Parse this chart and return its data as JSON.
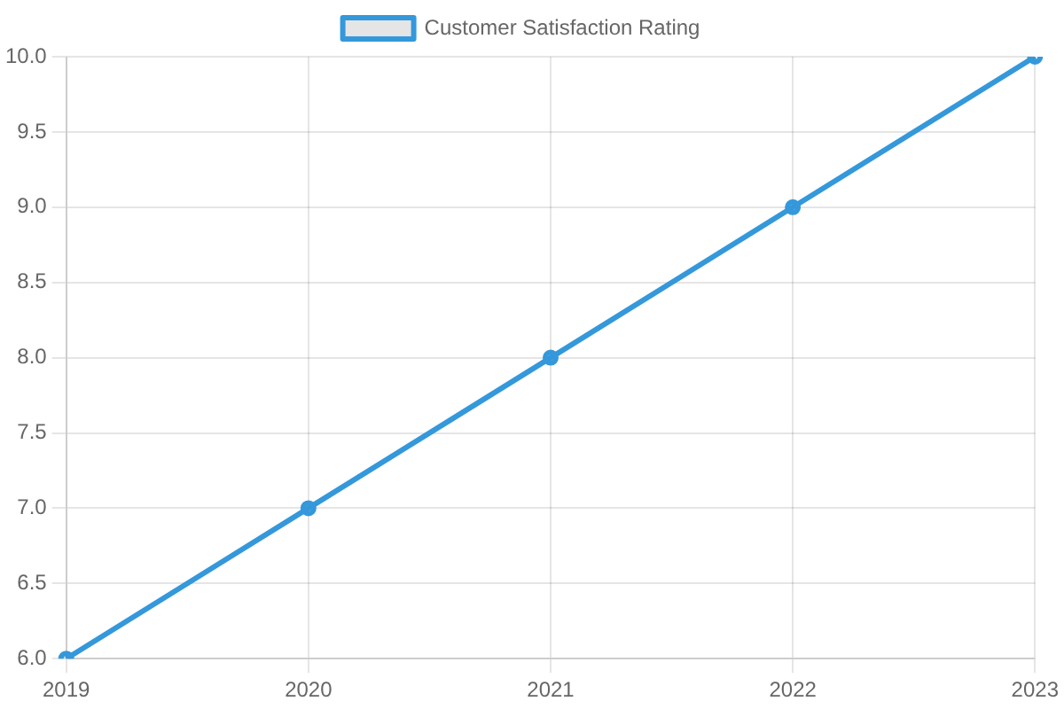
{
  "chart_data": {
    "type": "line",
    "categories": [
      "2019",
      "2020",
      "2021",
      "2022",
      "2023"
    ],
    "series": [
      {
        "name": "Customer Satisfaction Rating",
        "color": "#3498db",
        "values": [
          6,
          7,
          8,
          9,
          10
        ]
      }
    ],
    "ylim": [
      6,
      10
    ],
    "yticks": [
      {
        "value": 6,
        "label": "6.0"
      },
      {
        "value": 6.5,
        "label": "6.5"
      },
      {
        "value": 7,
        "label": "7.0"
      },
      {
        "value": 7.5,
        "label": "7.5"
      },
      {
        "value": 8,
        "label": "8.0"
      },
      {
        "value": 8.5,
        "label": "8.5"
      },
      {
        "value": 9,
        "label": "9.0"
      },
      {
        "value": 9.5,
        "label": "9.5"
      },
      {
        "value": 10,
        "label": "10.0"
      }
    ],
    "grid": true,
    "legend": "top",
    "marker": "circle",
    "line_style": "solid"
  }
}
